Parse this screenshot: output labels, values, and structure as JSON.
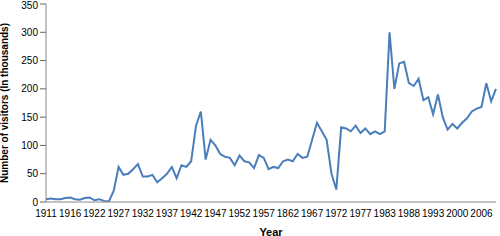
{
  "chart_data": {
    "type": "line",
    "x_label": "Year",
    "y_label": "Number of visitors (In thousands)",
    "categories": [
      "1911",
      null,
      null,
      null,
      null,
      "1916",
      null,
      null,
      null,
      null,
      "1922",
      null,
      null,
      null,
      null,
      "1927",
      null,
      null,
      null,
      null,
      "1932",
      null,
      null,
      null,
      null,
      "1937",
      null,
      null,
      null,
      null,
      "1942",
      null,
      null,
      null,
      null,
      "1947",
      null,
      null,
      null,
      null,
      "1952",
      null,
      null,
      null,
      null,
      "1957",
      null,
      null,
      null,
      null,
      "1862",
      null,
      null,
      null,
      null,
      "1967",
      null,
      null,
      null,
      null,
      "1972",
      null,
      null,
      null,
      null,
      "1977",
      null,
      null,
      null,
      null,
      "1983",
      null,
      null,
      null,
      null,
      "1988",
      null,
      null,
      null,
      null,
      "1993",
      null,
      null,
      null,
      null,
      "2000",
      null,
      null,
      null,
      null,
      "2006",
      null,
      null,
      null
    ],
    "values": [
      5,
      6,
      5,
      5,
      7,
      8,
      5,
      4,
      7,
      8,
      3,
      5,
      2,
      1,
      20,
      62,
      48,
      50,
      58,
      67,
      45,
      45,
      48,
      35,
      42,
      50,
      62,
      42,
      65,
      62,
      72,
      135,
      160,
      75,
      110,
      100,
      85,
      80,
      78,
      65,
      82,
      72,
      70,
      60,
      83,
      78,
      58,
      62,
      60,
      72,
      75,
      72,
      85,
      78,
      80,
      110,
      140,
      125,
      110,
      50,
      22,
      132,
      130,
      125,
      135,
      122,
      130,
      120,
      125,
      120,
      125,
      300,
      200,
      245,
      248,
      210,
      205,
      218,
      180,
      185,
      155,
      190,
      150,
      128,
      138,
      130,
      140,
      148,
      160,
      165,
      168,
      210,
      178,
      200
    ],
    "color": "#4a7ebb",
    "ylim": [
      0,
      350
    ],
    "yticks": [
      0,
      50,
      100,
      150,
      200,
      250,
      300,
      350
    ],
    "grid": false
  }
}
